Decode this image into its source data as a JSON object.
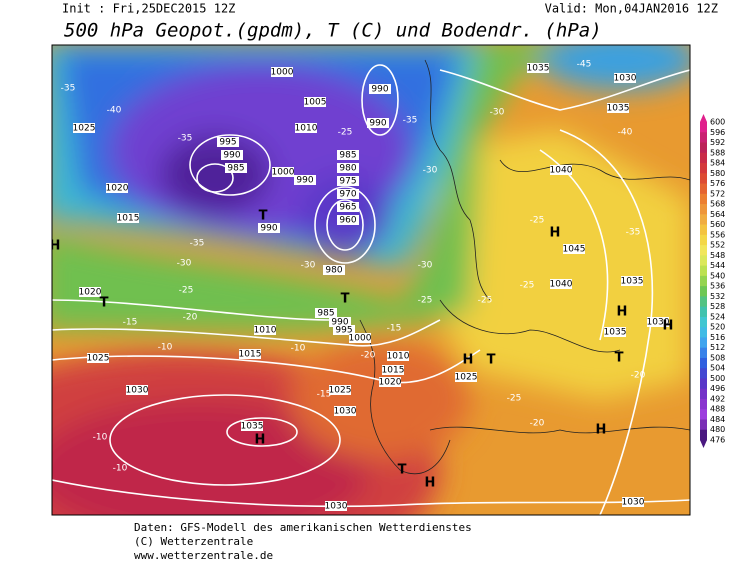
{
  "header": {
    "init": "Init : Fri,25DEC2015 12Z",
    "valid": "Valid: Mon,04JAN2016 12Z",
    "title": "500 hPa Geopot.(gpdm), T (C) und Bodendr. (hPa)"
  },
  "colorbar": {
    "ticks": [
      600,
      596,
      592,
      588,
      584,
      580,
      576,
      572,
      568,
      564,
      560,
      556,
      552,
      548,
      544,
      540,
      536,
      532,
      528,
      524,
      520,
      516,
      512,
      508,
      504,
      500,
      496,
      492,
      488,
      484,
      480,
      476
    ]
  },
  "map": {
    "isobar_labels": [
      "1025",
      "1020",
      "1015",
      "1020",
      "1025",
      "1030",
      "1035",
      "1000",
      "1005",
      "1010",
      "990",
      "990",
      "995",
      "990",
      "985",
      "1000",
      "990",
      "990",
      "985",
      "980",
      "975",
      "970",
      "965",
      "960",
      "980",
      "985",
      "990",
      "995",
      "1000",
      "1010",
      "1015",
      "1010",
      "1015",
      "1020",
      "1025",
      "1030",
      "1025",
      "1030",
      "1030",
      "1035",
      "1030",
      "1035",
      "1040",
      "1045",
      "1040",
      "1035",
      "1030",
      "1035"
    ],
    "temperature_labels": [
      "-35",
      "-40",
      "-35",
      "-45",
      "-40",
      "-35",
      "-30",
      "-25",
      "-25",
      "-25",
      "-20",
      "-20",
      "-25",
      "-10",
      "-10",
      "-20",
      "-15",
      "-10",
      "-25",
      "-30",
      "-35",
      "-30",
      "-25",
      "-35",
      "-30",
      "-30",
      "-25",
      "-20",
      "-15",
      "-10",
      "-15"
    ],
    "pressure_centers": [
      "H",
      "H",
      "T",
      "T",
      "T",
      "H",
      "T",
      "T",
      "H",
      "H",
      "T",
      "H",
      "H",
      "H"
    ]
  },
  "footer": {
    "lines": [
      "Daten: GFS-Modell des amerikanischen Wetterdienstes",
      "(C) Wetterzentrale",
      "www.wetterzentrale.de"
    ]
  }
}
